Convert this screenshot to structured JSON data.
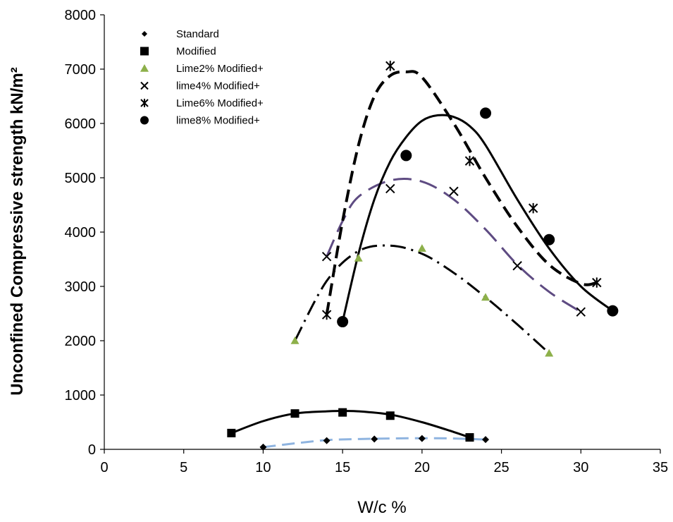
{
  "chart_data": {
    "type": "scatter",
    "title": "",
    "xlabel": "W/c %",
    "ylabel": "Unconfined Compressive strength kN/m²",
    "xlim": [
      0,
      35
    ],
    "ylim": [
      0,
      8000
    ],
    "xticks": [
      "0",
      "5",
      "10",
      "15",
      "20",
      "25",
      "30",
      "35"
    ],
    "yticks": [
      "0",
      "1000",
      "2000",
      "3000",
      "4000",
      "5000",
      "6000",
      "7000",
      "8000"
    ],
    "grid": false,
    "legend_position": "top-left",
    "series": [
      {
        "name": "Standard",
        "marker": "diamond",
        "color": "#000000",
        "x": [
          10,
          14,
          17,
          20,
          24
        ],
        "y": [
          40,
          160,
          190,
          200,
          180
        ],
        "trend_color": "#8FB4E0",
        "trend_dash": "dash",
        "trend_width": 3,
        "trend_x": [
          10,
          12,
          14,
          16,
          18,
          20,
          22,
          24
        ],
        "trend_y": [
          40,
          110,
          170,
          190,
          200,
          205,
          200,
          180
        ]
      },
      {
        "name": "Modified",
        "marker": "square",
        "color": "#000000",
        "x": [
          8,
          12,
          15,
          18,
          23
        ],
        "y": [
          300,
          660,
          680,
          620,
          220
        ],
        "trend_color": "#000000",
        "trend_dash": "solid",
        "trend_width": 3,
        "trend_x": [
          8,
          10,
          12,
          14,
          15,
          16,
          18,
          20,
          22,
          23
        ],
        "trend_y": [
          300,
          520,
          660,
          700,
          705,
          700,
          640,
          500,
          320,
          220
        ]
      },
      {
        "name": "Lime2% Modified+",
        "marker": "triangle",
        "color": "#8DB04A",
        "x": [
          12,
          16,
          20,
          24,
          28
        ],
        "y": [
          2000,
          3520,
          3700,
          2800,
          1770
        ],
        "trend_color": "#000000",
        "trend_dash": "longdashdot",
        "trend_width": 3,
        "trend_x": [
          12,
          14,
          16,
          18,
          20,
          22,
          24,
          26,
          28
        ],
        "trend_y": [
          2000,
          3100,
          3650,
          3750,
          3600,
          3250,
          2800,
          2300,
          1770
        ]
      },
      {
        "name": "lime4% Modified+",
        "marker": "x",
        "color": "#000000",
        "x": [
          14,
          18,
          22,
          26,
          30
        ],
        "y": [
          3550,
          4800,
          4750,
          3380,
          2530
        ],
        "trend_color": "#5E4B82",
        "trend_dash": "longdash",
        "trend_width": 3,
        "trend_x": [
          14,
          15,
          16,
          18,
          20,
          22,
          24,
          26,
          28,
          30
        ],
        "trend_y": [
          3550,
          4200,
          4650,
          4950,
          4930,
          4600,
          4050,
          3400,
          2900,
          2530
        ]
      },
      {
        "name": "Lime6% Modified+",
        "marker": "star",
        "color": "#000000",
        "x": [
          14,
          18,
          23,
          27,
          31
        ],
        "y": [
          2480,
          7060,
          5310,
          4440,
          3070
        ],
        "trend_color": "#000000",
        "trend_dash": "dash",
        "trend_width": 4,
        "trend_x": [
          14,
          15,
          16,
          17,
          18,
          19,
          20,
          22,
          24,
          26,
          28,
          30,
          31
        ],
        "trend_y": [
          2480,
          4200,
          5600,
          6500,
          6880,
          6950,
          6850,
          6000,
          5000,
          4100,
          3400,
          3050,
          3070
        ]
      },
      {
        "name": "lime8% Modified+",
        "marker": "circle",
        "color": "#000000",
        "x": [
          15,
          19,
          24,
          28,
          32
        ],
        "y": [
          2350,
          5410,
          6190,
          3860,
          2550
        ],
        "trend_color": "#000000",
        "trend_dash": "solid",
        "trend_width": 3,
        "trend_x": [
          15,
          16,
          17,
          18,
          19,
          20,
          21,
          22,
          23,
          24,
          26,
          28,
          30,
          32
        ],
        "trend_y": [
          2350,
          3600,
          4600,
          5300,
          5750,
          6050,
          6150,
          6120,
          5950,
          5600,
          4600,
          3700,
          3000,
          2550
        ]
      }
    ]
  }
}
